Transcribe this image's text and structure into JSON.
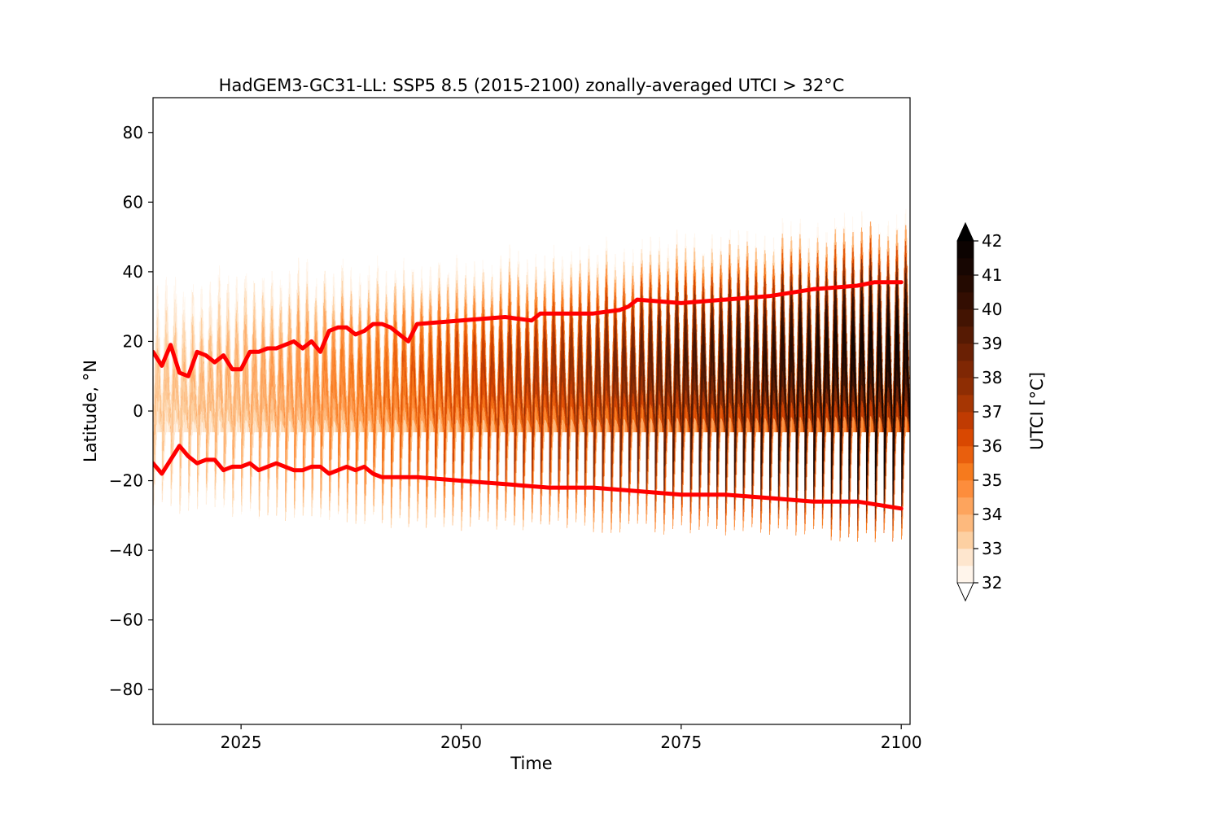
{
  "chart_data": {
    "type": "heatmap",
    "title": "HadGEM3-GC31-LL: SSP5 8.5 (2015-2100) zonally-averaged UTCI > 32°C",
    "xlabel": "Time",
    "ylabel": "Latitude, °N",
    "xlim": [
      2015,
      2101
    ],
    "ylim": [
      -90,
      90
    ],
    "xticks": [
      2025,
      2050,
      2075,
      2100
    ],
    "xtick_labels": [
      "2025",
      "2050",
      "2075",
      "2100"
    ],
    "yticks": [
      80,
      60,
      40,
      20,
      0,
      -20,
      -40,
      -60,
      -80
    ],
    "ytick_labels": [
      "80",
      "60",
      "40",
      "20",
      "0",
      "−20",
      "−40",
      "−60",
      "−80"
    ],
    "grid": false,
    "heat_field": {
      "description_of_values": "annual cycle of UTCI above 32 C; band edges per year",
      "years": [
        2015,
        2025,
        2035,
        2045,
        2055,
        2065,
        2075,
        2085,
        2095,
        2100
      ],
      "peak_north_lat": [
        36,
        40,
        42,
        43,
        45,
        47,
        50,
        52,
        56,
        58
      ],
      "peak_south_lat": [
        -28,
        -29,
        -31,
        -32,
        -33,
        -33,
        -34,
        -35,
        -36,
        -36
      ],
      "core_utci": [
        33.5,
        34,
        35,
        36,
        37,
        38,
        39.5,
        40.5,
        41.5,
        41.8
      ]
    },
    "colorbar": {
      "label": "UTCI [°C]",
      "vmin": 32,
      "vmax": 42,
      "levels": [
        32,
        32.5,
        33,
        33.5,
        34,
        34.5,
        35,
        35.5,
        36,
        36.5,
        37,
        37.5,
        38,
        38.5,
        39,
        39.5,
        40,
        40.5,
        41,
        41.5,
        42
      ],
      "tick_labels": [
        "32",
        "33",
        "34",
        "35",
        "36",
        "37",
        "38",
        "39",
        "40",
        "41",
        "42"
      ],
      "extend": "both",
      "colors": [
        "#fff5eb",
        "#fee6ce",
        "#fdd0a2",
        "#fdb97d",
        "#fda45d",
        "#fd8d3c",
        "#f67a1d",
        "#e95f0d",
        "#d94801",
        "#c03b02",
        "#a63603",
        "#8e2d03",
        "#7f2704",
        "#6a2004",
        "#561a03",
        "#431402",
        "#330e02",
        "#240a01",
        "#170602",
        "#0c0301"
      ],
      "under_color": "#ffffff",
      "over_color": "#000000"
    },
    "series": [
      {
        "color": "#ff0000",
        "x": [
          2015,
          2016,
          2017,
          2018,
          2019,
          2020,
          2021,
          2022,
          2023,
          2024,
          2025,
          2026,
          2027,
          2028,
          2029,
          2030,
          2031,
          2032,
          2033,
          2034,
          2035,
          2036,
          2037,
          2038,
          2039,
          2040,
          2041,
          2042,
          2043,
          2044,
          2045,
          2050,
          2055,
          2058,
          2059,
          2060,
          2065,
          2068,
          2069,
          2070,
          2075,
          2080,
          2085,
          2090,
          2095,
          2097,
          2100
        ],
        "y": [
          17,
          13,
          19,
          11,
          10,
          17,
          16,
          14,
          16,
          12,
          12,
          17,
          17,
          18,
          18,
          19,
          20,
          18,
          20,
          17,
          23,
          24,
          24,
          22,
          23,
          25,
          25,
          24,
          22,
          20,
          25,
          26,
          27,
          26,
          28,
          28,
          28,
          29,
          30,
          32,
          31,
          32,
          33,
          35,
          36,
          37,
          37
        ]
      },
      {
        "color": "#ff0000",
        "x": [
          2015,
          2016,
          2017,
          2018,
          2019,
          2020,
          2021,
          2022,
          2023,
          2024,
          2025,
          2026,
          2027,
          2028,
          2029,
          2030,
          2031,
          2032,
          2033,
          2034,
          2035,
          2036,
          2037,
          2038,
          2039,
          2040,
          2041,
          2042,
          2045,
          2050,
          2055,
          2060,
          2065,
          2070,
          2075,
          2080,
          2085,
          2090,
          2095,
          2100
        ],
        "y": [
          -15,
          -18,
          -14,
          -10,
          -13,
          -15,
          -14,
          -14,
          -17,
          -16,
          -16,
          -15,
          -17,
          -16,
          -15,
          -16,
          -17,
          -17,
          -16,
          -16,
          -18,
          -17,
          -16,
          -17,
          -16,
          -18,
          -19,
          -19,
          -19,
          -20,
          -21,
          -22,
          -22,
          -23,
          -24,
          -24,
          -25,
          -26,
          -26,
          -28
        ]
      }
    ]
  }
}
